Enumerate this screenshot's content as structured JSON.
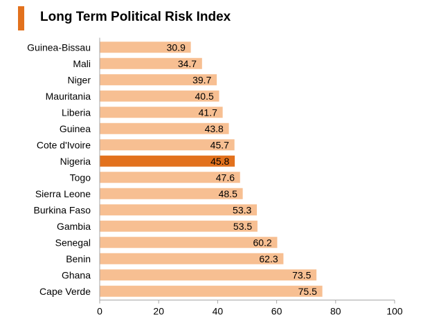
{
  "header": {
    "title": "Long Term Political Risk Index",
    "accent_color": "#E2711D"
  },
  "chart_data": {
    "type": "bar",
    "orientation": "horizontal",
    "title": "Long Term Political Risk Index",
    "xlabel": "",
    "ylabel": "",
    "xlim": [
      0,
      100
    ],
    "xticks": [
      0,
      20,
      40,
      60,
      80,
      100
    ],
    "grid": false,
    "categories": [
      "Guinea-Bissau",
      "Mali",
      "Niger",
      "Mauritania",
      "Liberia",
      "Guinea",
      "Cote d'Ivoire",
      "Nigeria",
      "Togo",
      "Sierra Leone",
      "Burkina Faso",
      "Gambia",
      "Senegal",
      "Benin",
      "Ghana",
      "Cape Verde"
    ],
    "values": [
      30.9,
      34.7,
      39.7,
      40.5,
      41.7,
      43.8,
      45.7,
      45.8,
      47.6,
      48.5,
      53.3,
      53.5,
      60.2,
      62.3,
      73.5,
      75.5
    ],
    "value_labels": [
      "30.9",
      "34.7",
      "39.7",
      "40.5",
      "41.7",
      "43.8",
      "45.7",
      "45.8",
      "47.6",
      "48.5",
      "53.3",
      "53.5",
      "60.2",
      "62.3",
      "73.5",
      "75.5"
    ],
    "highlight": "Nigeria",
    "colors": {
      "bar": "#F7BF92",
      "highlight": "#E2711D",
      "axis": "#A6A6A6",
      "text": "#000000"
    }
  }
}
